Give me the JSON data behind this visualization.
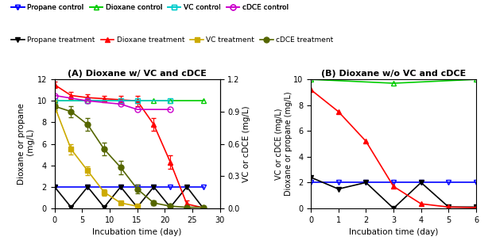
{
  "legend_entries_row1": [
    {
      "label": "Propane control",
      "color": "#0000ff",
      "marker": "v",
      "fillstyle": "none"
    },
    {
      "label": "Dioxane control",
      "color": "#00cc00",
      "marker": "^",
      "fillstyle": "none"
    },
    {
      "label": "VC control",
      "color": "#00cccc",
      "marker": "s",
      "fillstyle": "none"
    },
    {
      "label": "cDCE control",
      "color": "#cc00cc",
      "marker": "o",
      "fillstyle": "none"
    }
  ],
  "legend_entries_row2": [
    {
      "label": "Propane treatment",
      "color": "#000000",
      "marker": "v",
      "fillstyle": "full"
    },
    {
      "label": "Dioxane treatment",
      "color": "#ff0000",
      "marker": "^",
      "fillstyle": "full"
    },
    {
      "label": "VC treatment",
      "color": "#ccaa00",
      "marker": "s",
      "fillstyle": "full"
    },
    {
      "label": "cDCE treatment",
      "color": "#556600",
      "marker": "o",
      "fillstyle": "full"
    }
  ],
  "panel_A": {
    "title": "(A) Dioxane w/ VC and cDCE",
    "xlabel": "Incubation time (day)",
    "ylabel_left": "Dioxane or propane\n (mg/L)",
    "ylabel_right": "VC or cDCE (mg/L)",
    "xlim": [
      0,
      30
    ],
    "ylim_left": [
      0,
      12
    ],
    "ylim_right": [
      0,
      1.2
    ],
    "xticks": [
      0,
      5,
      10,
      15,
      20,
      25,
      30
    ],
    "yticks_left": [
      0,
      2,
      4,
      6,
      8,
      10,
      12
    ],
    "yticks_right": [
      0.0,
      0.3,
      0.6,
      0.9,
      1.2
    ],
    "series": {
      "propane_control": {
        "x": [
          0,
          6,
          12,
          15,
          18,
          21,
          27
        ],
        "y": [
          2.0,
          2.0,
          2.0,
          2.0,
          2.0,
          2.0,
          2.0
        ],
        "yerr": [
          0,
          0,
          0,
          0,
          0,
          0,
          0
        ],
        "color": "#0000ff",
        "marker": "v",
        "fillstyle": "none",
        "axis": "left"
      },
      "dioxane_control": {
        "x": [
          0,
          6,
          12,
          15,
          18,
          21,
          27
        ],
        "y": [
          10.0,
          10.0,
          10.0,
          10.0,
          10.0,
          10.0,
          10.0
        ],
        "yerr": [
          0,
          0,
          0,
          0,
          0,
          0,
          0
        ],
        "color": "#00cc00",
        "marker": "^",
        "fillstyle": "none",
        "axis": "left"
      },
      "vc_control": {
        "x": [
          0,
          6,
          12,
          15,
          21
        ],
        "y": [
          1.0,
          1.0,
          1.0,
          1.0,
          1.0
        ],
        "yerr": [
          0,
          0,
          0,
          0,
          0
        ],
        "color": "#00cccc",
        "marker": "s",
        "fillstyle": "none",
        "axis": "right"
      },
      "cdce_control": {
        "x": [
          0,
          6,
          12,
          15,
          21
        ],
        "y": [
          1.05,
          1.0,
          0.97,
          0.92,
          0.92
        ],
        "yerr": [
          0,
          0,
          0,
          0,
          0
        ],
        "color": "#cc00cc",
        "marker": "o",
        "fillstyle": "none",
        "axis": "right"
      },
      "propane_treatment": {
        "x": [
          0,
          3,
          6,
          9,
          12,
          15,
          18,
          21,
          24,
          27
        ],
        "y": [
          2.0,
          0.1,
          2.0,
          0.1,
          2.0,
          0.1,
          2.0,
          0.1,
          2.0,
          0.0
        ],
        "yerr": [
          0,
          0,
          0,
          0,
          0,
          0,
          0,
          0,
          0,
          0
        ],
        "color": "#000000",
        "marker": "v",
        "fillstyle": "full",
        "axis": "left"
      },
      "dioxane_treatment": {
        "x": [
          0,
          3,
          6,
          9,
          12,
          15,
          18,
          21,
          24,
          27
        ],
        "y": [
          11.5,
          10.5,
          10.3,
          10.2,
          10.1,
          10.0,
          7.8,
          4.3,
          0.4,
          0.05
        ],
        "yerr": [
          0.3,
          0.3,
          0.3,
          0.3,
          0.4,
          0.5,
          0.6,
          0.6,
          0.3,
          0.05
        ],
        "color": "#ff0000",
        "marker": "^",
        "fillstyle": "full",
        "axis": "left"
      },
      "vc_treatment": {
        "x": [
          0,
          3,
          6,
          9,
          12,
          15
        ],
        "y": [
          0.95,
          0.55,
          0.35,
          0.15,
          0.05,
          0.02
        ],
        "yerr": [
          0.05,
          0.05,
          0.04,
          0.03,
          0.01,
          0.005
        ],
        "color": "#ccaa00",
        "marker": "s",
        "fillstyle": "full",
        "axis": "right"
      },
      "cdce_treatment": {
        "x": [
          0,
          3,
          6,
          9,
          12,
          15,
          18,
          21,
          24,
          27
        ],
        "y": [
          0.95,
          0.9,
          0.78,
          0.55,
          0.38,
          0.18,
          0.05,
          0.02,
          0.01,
          0.01
        ],
        "yerr": [
          0.04,
          0.05,
          0.06,
          0.06,
          0.06,
          0.04,
          0.02,
          0.01,
          0.005,
          0.002
        ],
        "color": "#556600",
        "marker": "o",
        "fillstyle": "full",
        "axis": "right"
      }
    }
  },
  "panel_B": {
    "title": "(B) Dioxane w/o VC and cDCE",
    "xlabel": "Incubation time (day)",
    "ylabel_left": "VC or cDCE (mg/L)\nDioxane or propane (mg/L)",
    "xlim": [
      0,
      6
    ],
    "ylim_left": [
      0,
      10
    ],
    "xticks": [
      0,
      1,
      2,
      3,
      4,
      5,
      6
    ],
    "yticks_left": [
      0,
      2,
      4,
      6,
      8,
      10
    ],
    "series": {
      "propane_control": {
        "x": [
          0,
          1,
          2,
          3,
          4,
          5,
          6
        ],
        "y": [
          2.0,
          2.0,
          2.0,
          2.0,
          2.0,
          2.0,
          2.0
        ],
        "color": "#0000ff",
        "marker": "v",
        "fillstyle": "none"
      },
      "dioxane_control": {
        "x": [
          0,
          3,
          6
        ],
        "y": [
          10.0,
          9.7,
          10.0
        ],
        "color": "#00cc00",
        "marker": "^",
        "fillstyle": "none"
      },
      "propane_treatment": {
        "x": [
          0,
          1,
          2,
          3,
          4,
          5,
          6
        ],
        "y": [
          2.4,
          1.5,
          2.0,
          0.0,
          2.0,
          0.1,
          0.1
        ],
        "color": "#000000",
        "marker": "v",
        "fillstyle": "full"
      },
      "dioxane_treatment": {
        "x": [
          0,
          1,
          2,
          3,
          4,
          5,
          6
        ],
        "y": [
          9.2,
          7.5,
          5.2,
          1.7,
          0.35,
          0.1,
          0.05
        ],
        "color": "#ff0000",
        "marker": "^",
        "fillstyle": "full"
      }
    }
  }
}
